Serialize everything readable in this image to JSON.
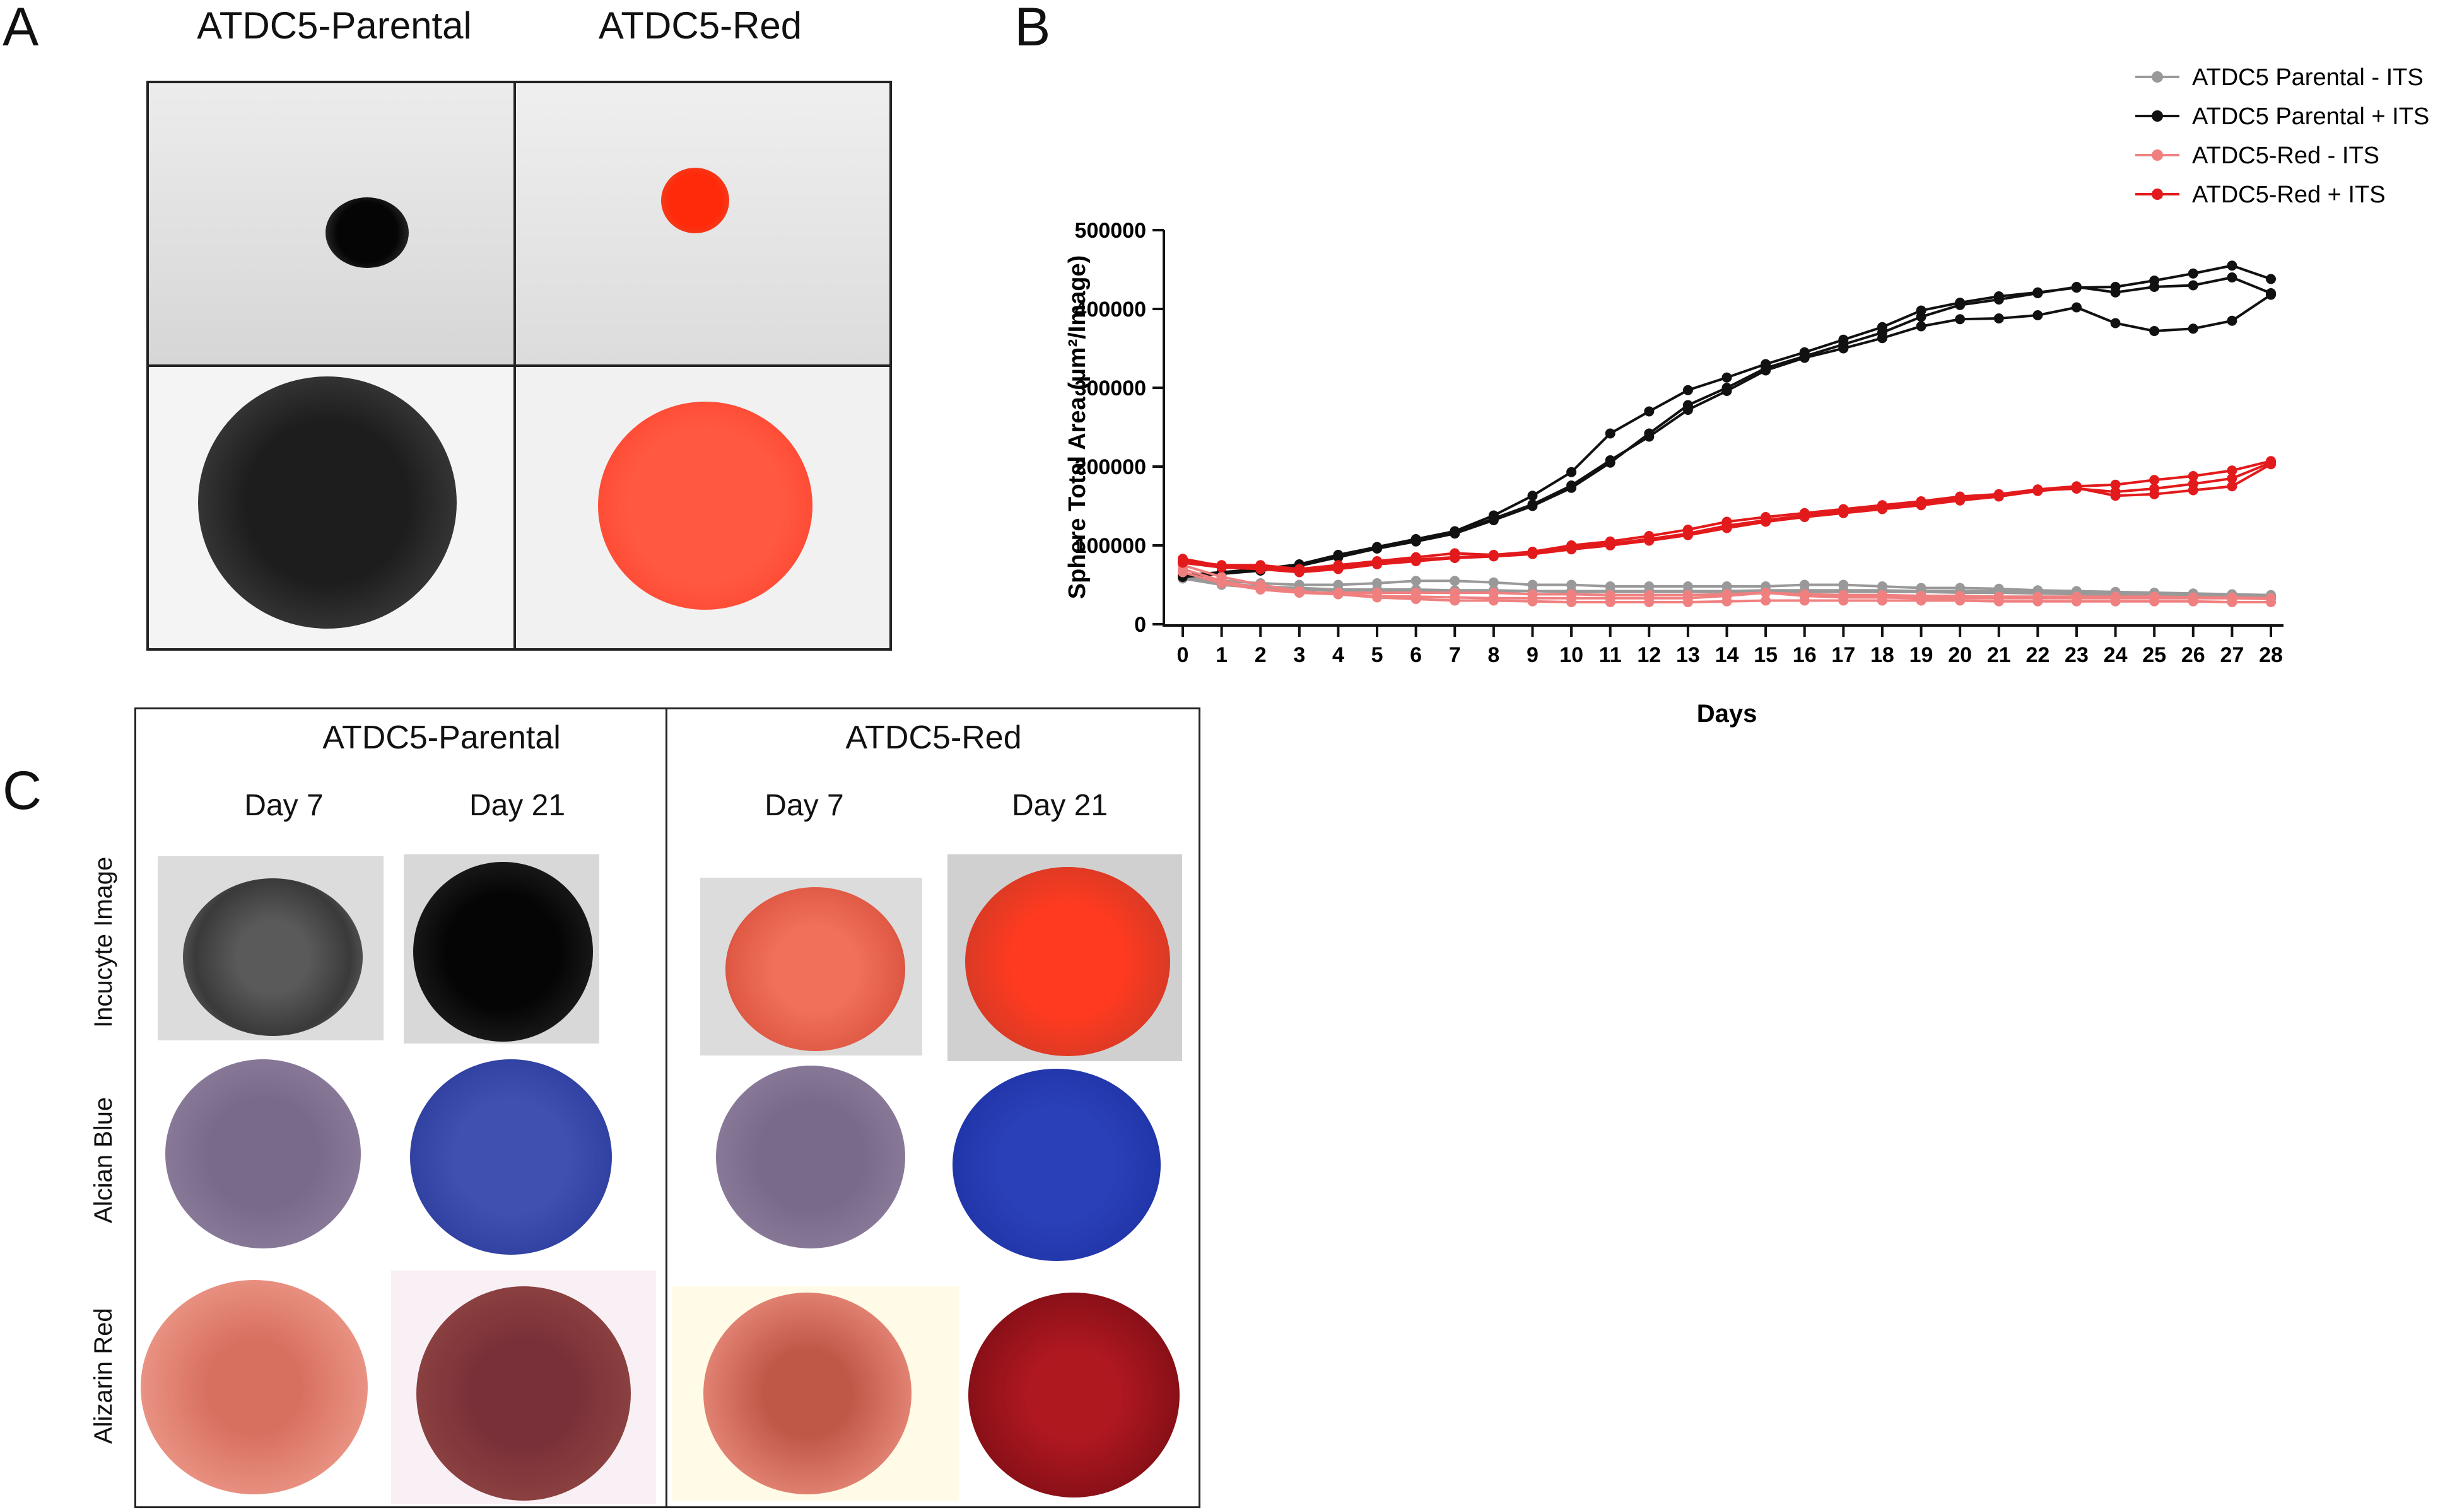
{
  "panel_a": {
    "letter": "A",
    "col_titles": [
      "ATDC5-Parental",
      "ATDC5-Red"
    ]
  },
  "panel_b": {
    "letter": "B"
  },
  "panel_c": {
    "letter": "C",
    "group_titles": [
      "ATDC5-Parental",
      "ATDC5-Red"
    ],
    "day_labels": [
      "Day 7",
      "Day 21",
      "Day 7",
      "Day 21"
    ],
    "row_labels": [
      "Incucyte Image",
      "Alcian Blue",
      "Alizarin Red"
    ]
  },
  "chart_data": {
    "type": "line",
    "title": "",
    "xlabel": "Days",
    "ylabel": "Sphere Total Area (µm²/Image)",
    "ylim": [
      0,
      500000
    ],
    "yticks": [
      "0",
      "100000",
      "200000",
      "300000",
      "400000",
      "500000"
    ],
    "x": [
      0,
      1,
      2,
      3,
      4,
      5,
      6,
      7,
      8,
      9,
      10,
      11,
      12,
      13,
      14,
      15,
      16,
      17,
      18,
      19,
      20,
      21,
      22,
      23,
      24,
      25,
      26,
      27,
      28
    ],
    "grid": false,
    "legend_position": "top-right",
    "series": [
      {
        "name": "ATDC5 Parental - ITS",
        "color": "#999999",
        "replicate": 1,
        "values": [
          60000,
          55000,
          52000,
          50000,
          50000,
          52000,
          55000,
          55000,
          53000,
          50000,
          50000,
          48000,
          48000,
          48000,
          48000,
          48000,
          50000,
          50000,
          48000,
          46000,
          46000,
          45000,
          43000,
          42000,
          41000,
          40000,
          39000,
          38000,
          37000
        ]
      },
      {
        "name": "ATDC5 Parental - ITS",
        "color": "#999999",
        "replicate": 2,
        "values": [
          62000,
          52000,
          48000,
          46000,
          44000,
          44000,
          44000,
          43000,
          43000,
          42000,
          42000,
          42000,
          42000,
          42000,
          42000,
          43000,
          43000,
          43000,
          43000,
          42000,
          42000,
          42000,
          41000,
          40000,
          40000,
          39000,
          38000,
          37000,
          36000
        ]
      },
      {
        "name": "ATDC5 Parental - ITS",
        "color": "#999999",
        "replicate": 3,
        "values": [
          58000,
          50000,
          46000,
          44000,
          43000,
          42000,
          42000,
          42000,
          42000,
          42000,
          41000,
          41000,
          41000,
          41000,
          41000,
          41000,
          41000,
          41000,
          41000,
          41000,
          40000,
          40000,
          39000,
          38000,
          38000,
          37000,
          36000,
          36000,
          35000
        ]
      },
      {
        "name": "ATDC5 Parental + ITS",
        "color": "#111111",
        "replicate": 1,
        "values": [
          62000,
          66000,
          70000,
          76000,
          88000,
          98000,
          108000,
          118000,
          138000,
          163000,
          193000,
          242000,
          270000,
          297000,
          313000,
          330000,
          345000,
          361000,
          377000,
          398000,
          408000,
          416000,
          421000,
          427000,
          428000,
          436000,
          445000,
          455000,
          438000
        ]
      },
      {
        "name": "ATDC5 Parental + ITS",
        "color": "#111111",
        "replicate": 2,
        "values": [
          60000,
          64000,
          68000,
          74000,
          85000,
          96000,
          105000,
          115000,
          132000,
          150000,
          173000,
          205000,
          242000,
          278000,
          300000,
          325000,
          340000,
          355000,
          370000,
          390000,
          405000,
          412000,
          420000,
          428000,
          421000,
          428000,
          430000,
          440000,
          420000
        ]
      },
      {
        "name": "ATDC5 Parental + ITS",
        "color": "#111111",
        "replicate": 3,
        "values": [
          61000,
          65000,
          69000,
          75000,
          86000,
          97000,
          106000,
          116000,
          134000,
          152000,
          176000,
          208000,
          238000,
          272000,
          296000,
          322000,
          338000,
          350000,
          363000,
          378000,
          387000,
          388000,
          392000,
          402000,
          382000,
          372000,
          375000,
          385000,
          418000
        ]
      },
      {
        "name": "ATDC5-Red - ITS",
        "color": "#f08080",
        "replicate": 1,
        "values": [
          70000,
          55000,
          45000,
          40000,
          38000,
          36000,
          35000,
          34000,
          33000,
          33000,
          33000,
          33000,
          33000,
          33000,
          36000,
          40000,
          36000,
          34000,
          34000,
          33000,
          33000,
          33000,
          33000,
          33000,
          33000,
          33000,
          33000,
          33000,
          32000
        ]
      },
      {
        "name": "ATDC5-Red - ITS",
        "color": "#f08080",
        "replicate": 2,
        "values": [
          75000,
          60000,
          50000,
          42000,
          38000,
          34000,
          32000,
          30000,
          30000,
          29000,
          28000,
          28000,
          28000,
          28000,
          29000,
          30000,
          30000,
          30000,
          30000,
          30000,
          30000,
          29000,
          29000,
          29000,
          29000,
          29000,
          29000,
          28000,
          28000
        ]
      },
      {
        "name": "ATDC5-Red - ITS",
        "color": "#f08080",
        "replicate": 3,
        "values": [
          66000,
          52000,
          44000,
          40000,
          40000,
          40000,
          40000,
          40000,
          40000,
          38000,
          38000,
          37000,
          37000,
          37000,
          38000,
          40000,
          38000,
          37000,
          37000,
          36000,
          36000,
          35000,
          35000,
          35000,
          35000,
          35000,
          34000,
          34000,
          33000
        ]
      },
      {
        "name": "ATDC5-Red + ITS",
        "color": "#e31a1c",
        "replicate": 1,
        "values": [
          80000,
          75000,
          75000,
          70000,
          75000,
          80000,
          85000,
          90000,
          88000,
          92000,
          100000,
          105000,
          112000,
          120000,
          130000,
          136000,
          141000,
          146000,
          151000,
          156000,
          162000,
          165000,
          171000,
          175000,
          177000,
          183000,
          188000,
          195000,
          207000
        ]
      },
      {
        "name": "ATDC5-Red + ITS",
        "color": "#e31a1c",
        "replicate": 2,
        "values": [
          83000,
          74000,
          72000,
          68000,
          72000,
          78000,
          82000,
          85000,
          87000,
          90000,
          97000,
          102000,
          108000,
          115000,
          125000,
          132000,
          138000,
          143000,
          148000,
          153000,
          160000,
          164000,
          170000,
          172000,
          168000,
          172000,
          178000,
          185000,
          205000
        ]
      },
      {
        "name": "ATDC5-Red + ITS",
        "color": "#e31a1c",
        "replicate": 3,
        "values": [
          78000,
          72000,
          70000,
          66000,
          70000,
          76000,
          80000,
          84000,
          86000,
          89000,
          95000,
          100000,
          106000,
          113000,
          122000,
          130000,
          136000,
          141000,
          146000,
          151000,
          157000,
          162000,
          169000,
          173000,
          163000,
          165000,
          170000,
          175000,
          203000
        ]
      }
    ]
  }
}
